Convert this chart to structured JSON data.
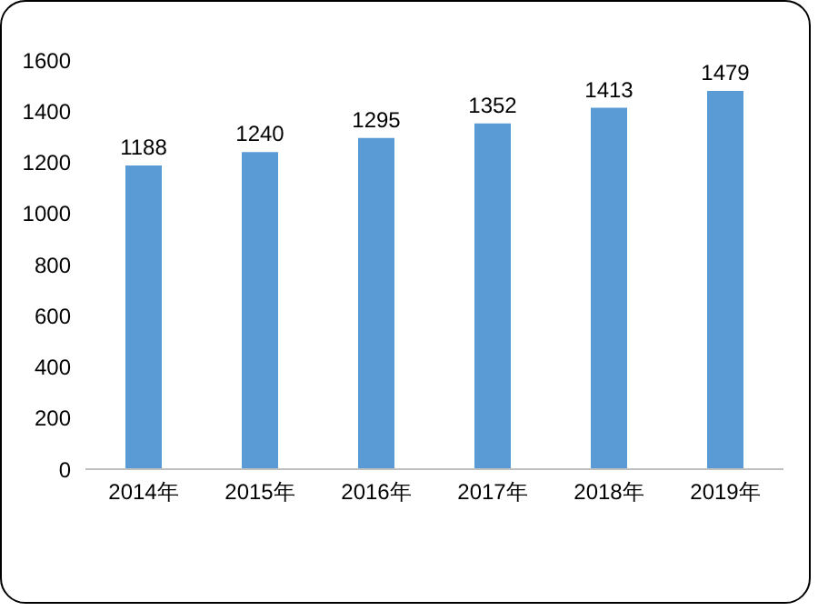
{
  "chart_data": {
    "type": "bar",
    "categories": [
      "2014年",
      "2015年",
      "2016年",
      "2017年",
      "2018年",
      "2019年"
    ],
    "values": [
      1188,
      1240,
      1295,
      1352,
      1413,
      1479
    ],
    "color": "#5b9bd5",
    "ylim": [
      0,
      1600
    ],
    "yticks": [
      0,
      200,
      400,
      600,
      800,
      1000,
      1200,
      1400,
      1600
    ],
    "grid": false,
    "data_labels": true
  }
}
